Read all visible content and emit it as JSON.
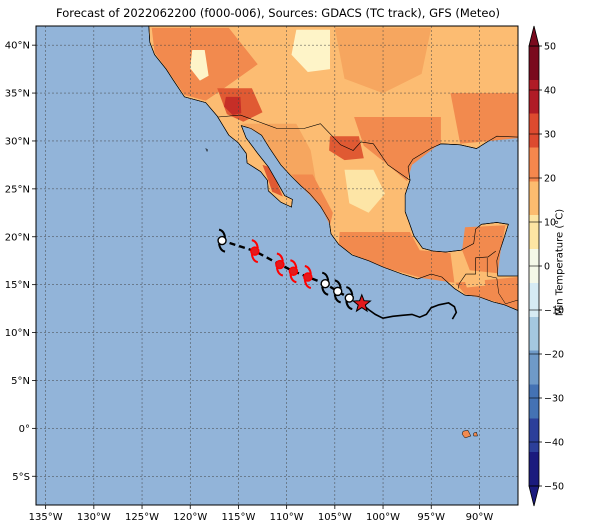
{
  "title": "Forecast of 2022062200 (f000-006), Sources: GDACS (TC track), GFS (Meteo)",
  "map": {
    "lon_range": [
      -136,
      -86
    ],
    "lat_range": [
      -8,
      42
    ],
    "lon_ticks": [
      -135,
      -130,
      -125,
      -120,
      -115,
      -110,
      -105,
      -100,
      -95,
      -90
    ],
    "lon_tick_labels": [
      "135°W",
      "130°W",
      "125°W",
      "120°W",
      "115°W",
      "110°W",
      "105°W",
      "100°W",
      "95°W",
      "90°W"
    ],
    "lat_ticks": [
      40,
      35,
      30,
      25,
      20,
      15,
      10,
      5,
      0,
      -5
    ],
    "lat_tick_labels": [
      "40°N",
      "35°N",
      "30°N",
      "25°N",
      "20°N",
      "15°N",
      "10°N",
      "5°N",
      "0°",
      "5°S"
    ],
    "grid": true,
    "ocean_color": "#92b4d9"
  },
  "colorbar": {
    "label": "Min Temperature (°C)",
    "ticks": [
      50,
      40,
      30,
      20,
      10,
      0,
      -10,
      -20,
      -30,
      -40,
      -50
    ],
    "tick_labels": [
      "50",
      "40",
      "30",
      "20",
      "10",
      "0",
      "−10",
      "−20",
      "−30",
      "−40",
      "−50"
    ],
    "range": [
      -50,
      50
    ],
    "colors": [
      "#1a1a7e",
      "#2c3f9a",
      "#4472b4",
      "#6f9ac8",
      "#a4c8e0",
      "#d6ebf4",
      "#f4f8e8",
      "#fde5a3",
      "#fcbc6f",
      "#f5874d",
      "#dd4a2f",
      "#b01b26",
      "#7a0a1e"
    ]
  },
  "track": {
    "past": [
      [
        -102.2,
        13.0
      ],
      [
        -101.5,
        12.4
      ],
      [
        -100.8,
        11.9
      ],
      [
        -100.0,
        11.5
      ],
      [
        -99.0,
        11.7
      ],
      [
        -98.0,
        11.8
      ],
      [
        -97.0,
        11.9
      ],
      [
        -96.2,
        11.6
      ],
      [
        -95.5,
        11.9
      ],
      [
        -95.0,
        12.6
      ],
      [
        -94.2,
        12.9
      ],
      [
        -93.2,
        13.1
      ],
      [
        -92.6,
        12.7
      ],
      [
        -92.4,
        12.1
      ],
      [
        -92.8,
        11.4
      ]
    ],
    "current": [
      -102.2,
      13.0
    ],
    "forecast": [
      [
        -103.5,
        13.6
      ],
      [
        -104.7,
        14.3
      ],
      [
        -106.0,
        15.1
      ],
      [
        -107.8,
        15.8
      ],
      [
        -109.3,
        16.4
      ],
      [
        -110.7,
        17.1
      ],
      [
        -113.3,
        18.5
      ],
      [
        -116.7,
        19.6
      ]
    ],
    "forecast_colors": [
      "black",
      "black",
      "black",
      "red",
      "red",
      "red",
      "red",
      "black"
    ]
  },
  "land_colors": {
    "t15": "#f28a4e",
    "t20": "#fcbc72",
    "t25": "#f6a65f",
    "t30": "#e05a33",
    "t35": "#c62e27",
    "cool": "#fde5a6",
    "cold": "#fef4c8"
  }
}
